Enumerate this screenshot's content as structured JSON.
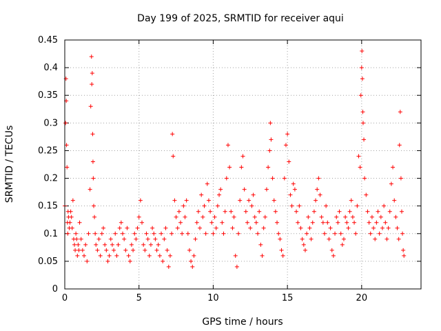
{
  "chart_data": {
    "type": "scatter",
    "title": "Day 199 of 2025, SRMTID for receiver aqui",
    "xlabel": "GPS time / hours",
    "ylabel": "SRMTID / TECUs",
    "xlim": [
      0,
      24
    ],
    "ylim": [
      0,
      0.45
    ],
    "xticks": [
      0,
      5,
      10,
      15,
      20
    ],
    "yticks": [
      0,
      0.05,
      0.1,
      0.15,
      0.2,
      0.25,
      0.3,
      0.35,
      0.4,
      0.45
    ],
    "ytick_labels": [
      "0",
      "0.05",
      "0.1",
      "0.15",
      "0.2",
      "0.25",
      "0.3",
      "0.35",
      "0.4",
      "0.45"
    ],
    "grid": true,
    "marker": "+",
    "color": "#ff0000",
    "series": [
      {
        "name": "SRMTID",
        "x": [
          0.0,
          0.05,
          0.08,
          0.1,
          0.12,
          0.15,
          0.18,
          0.2,
          0.22,
          0.25,
          0.3,
          0.35,
          0.4,
          0.45,
          0.5,
          0.55,
          0.6,
          0.65,
          0.7,
          0.75,
          0.8,
          0.85,
          0.9,
          0.95,
          1.0,
          1.1,
          1.2,
          1.3,
          1.4,
          1.5,
          1.6,
          1.7,
          1.75,
          1.8,
          1.82,
          1.85,
          1.88,
          1.9,
          1.92,
          1.95,
          2.0,
          2.05,
          2.1,
          2.2,
          2.3,
          2.4,
          2.5,
          2.6,
          2.7,
          2.8,
          2.9,
          3.0,
          3.1,
          3.2,
          3.3,
          3.4,
          3.5,
          3.6,
          3.7,
          3.8,
          3.9,
          4.0,
          4.1,
          4.2,
          4.3,
          4.4,
          4.5,
          4.6,
          4.7,
          4.8,
          4.9,
          5.0,
          5.1,
          5.2,
          5.3,
          5.4,
          5.5,
          5.6,
          5.7,
          5.8,
          5.9,
          6.0,
          6.1,
          6.2,
          6.3,
          6.4,
          6.5,
          6.6,
          6.7,
          6.8,
          6.9,
          7.0,
          7.1,
          7.2,
          7.25,
          7.3,
          7.4,
          7.5,
          7.6,
          7.7,
          7.8,
          7.9,
          8.0,
          8.1,
          8.2,
          8.3,
          8.4,
          8.5,
          8.6,
          8.7,
          8.8,
          8.9,
          9.0,
          9.1,
          9.2,
          9.3,
          9.4,
          9.5,
          9.6,
          9.7,
          9.8,
          9.9,
          10.0,
          10.1,
          10.2,
          10.3,
          10.4,
          10.5,
          10.6,
          10.7,
          10.8,
          10.9,
          11.0,
          11.1,
          11.2,
          11.3,
          11.4,
          11.5,
          11.6,
          11.7,
          11.8,
          11.9,
          12.0,
          12.1,
          12.2,
          12.3,
          12.4,
          12.5,
          12.6,
          12.7,
          12.8,
          12.9,
          13.0,
          13.1,
          13.2,
          13.3,
          13.4,
          13.5,
          13.6,
          13.7,
          13.8,
          13.85,
          13.9,
          14.0,
          14.1,
          14.2,
          14.3,
          14.4,
          14.5,
          14.6,
          14.7,
          14.8,
          14.9,
          15.0,
          15.1,
          15.2,
          15.3,
          15.4,
          15.5,
          15.6,
          15.7,
          15.8,
          15.9,
          16.0,
          16.1,
          16.2,
          16.3,
          16.4,
          16.5,
          16.6,
          16.7,
          16.8,
          16.9,
          17.0,
          17.1,
          17.2,
          17.3,
          17.4,
          17.5,
          17.6,
          17.7,
          17.8,
          17.9,
          18.0,
          18.1,
          18.2,
          18.3,
          18.4,
          18.5,
          18.6,
          18.7,
          18.8,
          18.9,
          19.0,
          19.1,
          19.2,
          19.3,
          19.4,
          19.5,
          19.6,
          19.7,
          19.8,
          19.9,
          19.95,
          20.0,
          20.02,
          20.05,
          20.08,
          20.1,
          20.15,
          20.2,
          20.3,
          20.4,
          20.5,
          20.6,
          20.7,
          20.8,
          20.9,
          21.0,
          21.1,
          21.2,
          21.3,
          21.4,
          21.5,
          21.6,
          21.7,
          21.8,
          21.9,
          22.0,
          22.1,
          22.2,
          22.3,
          22.4,
          22.5,
          22.55,
          22.6,
          22.65,
          22.7,
          22.75,
          22.8,
          22.85
        ],
        "y": [
          0.15,
          0.3,
          0.38,
          0.34,
          0.26,
          0.22,
          0.12,
          0.1,
          0.14,
          0.13,
          0.11,
          0.12,
          0.14,
          0.13,
          0.11,
          0.16,
          0.09,
          0.08,
          0.07,
          0.1,
          0.09,
          0.06,
          0.08,
          0.07,
          0.12,
          0.09,
          0.07,
          0.06,
          0.08,
          0.05,
          0.1,
          0.18,
          0.33,
          0.42,
          0.37,
          0.39,
          0.28,
          0.23,
          0.2,
          0.15,
          0.13,
          0.1,
          0.08,
          0.07,
          0.09,
          0.06,
          0.1,
          0.11,
          0.08,
          0.07,
          0.05,
          0.06,
          0.09,
          0.08,
          0.07,
          0.1,
          0.06,
          0.08,
          0.11,
          0.12,
          0.1,
          0.09,
          0.07,
          0.11,
          0.06,
          0.05,
          0.08,
          0.07,
          0.1,
          0.09,
          0.11,
          0.13,
          0.16,
          0.12,
          0.08,
          0.07,
          0.1,
          0.09,
          0.06,
          0.08,
          0.11,
          0.1,
          0.09,
          0.07,
          0.08,
          0.06,
          0.1,
          0.05,
          0.09,
          0.11,
          0.07,
          0.04,
          0.06,
          0.1,
          0.28,
          0.24,
          0.16,
          0.13,
          0.11,
          0.14,
          0.12,
          0.1,
          0.15,
          0.13,
          0.16,
          0.1,
          0.07,
          0.05,
          0.04,
          0.06,
          0.09,
          0.12,
          0.14,
          0.11,
          0.17,
          0.13,
          0.15,
          0.1,
          0.19,
          0.16,
          0.14,
          0.12,
          0.1,
          0.13,
          0.11,
          0.15,
          0.17,
          0.18,
          0.12,
          0.1,
          0.14,
          0.2,
          0.26,
          0.22,
          0.14,
          0.11,
          0.13,
          0.06,
          0.04,
          0.1,
          0.16,
          0.22,
          0.24,
          0.18,
          0.14,
          0.12,
          0.16,
          0.11,
          0.15,
          0.17,
          0.13,
          0.12,
          0.1,
          0.14,
          0.08,
          0.06,
          0.11,
          0.13,
          0.18,
          0.22,
          0.25,
          0.3,
          0.27,
          0.2,
          0.16,
          0.14,
          0.12,
          0.1,
          0.09,
          0.07,
          0.06,
          0.2,
          0.26,
          0.28,
          0.23,
          0.17,
          0.15,
          0.19,
          0.18,
          0.14,
          0.12,
          0.15,
          0.11,
          0.09,
          0.08,
          0.07,
          0.1,
          0.13,
          0.11,
          0.09,
          0.12,
          0.14,
          0.16,
          0.18,
          0.2,
          0.17,
          0.13,
          0.12,
          0.1,
          0.15,
          0.12,
          0.09,
          0.11,
          0.07,
          0.06,
          0.1,
          0.13,
          0.12,
          0.14,
          0.1,
          0.08,
          0.09,
          0.13,
          0.12,
          0.11,
          0.14,
          0.16,
          0.13,
          0.12,
          0.1,
          0.15,
          0.24,
          0.22,
          0.35,
          0.4,
          0.43,
          0.38,
          0.32,
          0.3,
          0.27,
          0.2,
          0.17,
          0.14,
          0.12,
          0.1,
          0.13,
          0.11,
          0.09,
          0.12,
          0.14,
          0.1,
          0.13,
          0.11,
          0.15,
          0.12,
          0.09,
          0.11,
          0.14,
          0.19,
          0.22,
          0.16,
          0.13,
          0.11,
          0.09,
          0.26,
          0.32,
          0.2,
          0.14,
          0.1,
          0.07,
          0.06
        ]
      }
    ]
  }
}
